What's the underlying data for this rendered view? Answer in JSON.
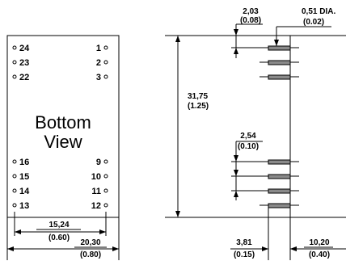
{
  "bottom_view": {
    "title_line1": "Bottom",
    "title_line2": "View",
    "pins": {
      "p24": "24",
      "p23": "23",
      "p22": "22",
      "p1": "1",
      "p2": "2",
      "p3": "3",
      "p16": "16",
      "p15": "15",
      "p14": "14",
      "p13": "13",
      "p9": "9",
      "p10": "10",
      "p11": "11",
      "p12": "12"
    },
    "dim_pin_span": {
      "mm": "15,24",
      "in": "(0.60)"
    },
    "dim_width": {
      "mm": "20,30",
      "in": "(0.80)"
    }
  },
  "side_view": {
    "dim_pin_offset": {
      "mm": "2,03",
      "in": "(0.08)"
    },
    "dim_pin_dia": {
      "mm": "0,51 DIA.",
      "in": "(0.02)"
    },
    "dim_length": {
      "mm": "31,75",
      "in": "(1.25)"
    },
    "dim_pitch": {
      "mm": "2,54",
      "in": "(0.10)"
    },
    "dim_pin_length": {
      "mm": "3,81",
      "in": "(0.15)"
    },
    "dim_height": {
      "mm": "10,20",
      "in": "(0.40)"
    }
  }
}
